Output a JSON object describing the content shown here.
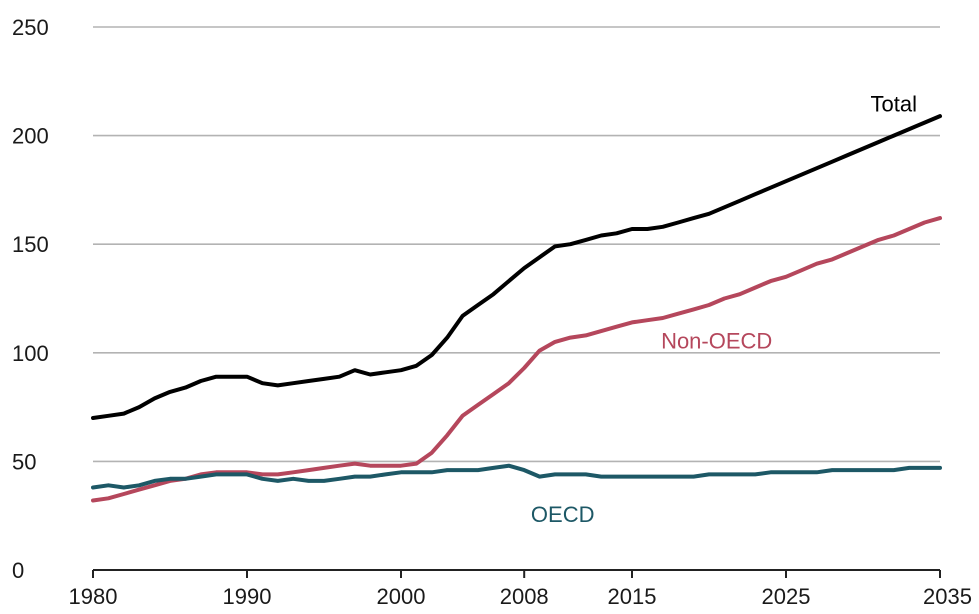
{
  "chart_data": {
    "type": "line",
    "title": "",
    "xlabel": "",
    "ylabel": "",
    "ylim": [
      0,
      250
    ],
    "xlim": [
      1980,
      2035
    ],
    "y_ticks": [
      0,
      50,
      100,
      150,
      200,
      250
    ],
    "x_ticks": [
      1980,
      1990,
      2000,
      2008,
      2015,
      2025,
      2035
    ],
    "grid": "horizontal",
    "legend": "none",
    "series": [
      {
        "name": "Total",
        "color": "#000000",
        "points": [
          [
            1980,
            70
          ],
          [
            1981,
            71
          ],
          [
            1982,
            72
          ],
          [
            1983,
            75
          ],
          [
            1984,
            79
          ],
          [
            1985,
            82
          ],
          [
            1986,
            84
          ],
          [
            1987,
            87
          ],
          [
            1988,
            89
          ],
          [
            1989,
            89
          ],
          [
            1990,
            89
          ],
          [
            1991,
            86
          ],
          [
            1992,
            85
          ],
          [
            1993,
            86
          ],
          [
            1994,
            87
          ],
          [
            1995,
            88
          ],
          [
            1996,
            89
          ],
          [
            1997,
            92
          ],
          [
            1998,
            90
          ],
          [
            1999,
            91
          ],
          [
            2000,
            92
          ],
          [
            2001,
            94
          ],
          [
            2002,
            99
          ],
          [
            2003,
            107
          ],
          [
            2004,
            117
          ],
          [
            2005,
            122
          ],
          [
            2006,
            127
          ],
          [
            2007,
            133
          ],
          [
            2008,
            139
          ],
          [
            2009,
            144
          ],
          [
            2010,
            149
          ],
          [
            2011,
            150
          ],
          [
            2012,
            152
          ],
          [
            2013,
            154
          ],
          [
            2014,
            155
          ],
          [
            2015,
            157
          ],
          [
            2016,
            157
          ],
          [
            2017,
            158
          ],
          [
            2018,
            160
          ],
          [
            2019,
            162
          ],
          [
            2020,
            164
          ],
          [
            2021,
            167
          ],
          [
            2022,
            170
          ],
          [
            2023,
            173
          ],
          [
            2024,
            176
          ],
          [
            2025,
            179
          ],
          [
            2026,
            182
          ],
          [
            2027,
            185
          ],
          [
            2028,
            188
          ],
          [
            2029,
            191
          ],
          [
            2030,
            194
          ],
          [
            2031,
            197
          ],
          [
            2032,
            200
          ],
          [
            2033,
            203
          ],
          [
            2034,
            206
          ],
          [
            2035,
            209
          ]
        ]
      },
      {
        "name": "Non-OECD",
        "color": "#b5475c",
        "points": [
          [
            1980,
            32
          ],
          [
            1981,
            33
          ],
          [
            1982,
            35
          ],
          [
            1983,
            37
          ],
          [
            1984,
            39
          ],
          [
            1985,
            41
          ],
          [
            1986,
            42
          ],
          [
            1987,
            44
          ],
          [
            1988,
            45
          ],
          [
            1989,
            45
          ],
          [
            1990,
            45
          ],
          [
            1991,
            44
          ],
          [
            1992,
            44
          ],
          [
            1993,
            45
          ],
          [
            1994,
            46
          ],
          [
            1995,
            47
          ],
          [
            1996,
            48
          ],
          [
            1997,
            49
          ],
          [
            1998,
            48
          ],
          [
            1999,
            48
          ],
          [
            2000,
            48
          ],
          [
            2001,
            49
          ],
          [
            2002,
            54
          ],
          [
            2003,
            62
          ],
          [
            2004,
            71
          ],
          [
            2005,
            76
          ],
          [
            2006,
            81
          ],
          [
            2007,
            86
          ],
          [
            2008,
            93
          ],
          [
            2009,
            101
          ],
          [
            2010,
            105
          ],
          [
            2011,
            107
          ],
          [
            2012,
            108
          ],
          [
            2013,
            110
          ],
          [
            2014,
            112
          ],
          [
            2015,
            114
          ],
          [
            2016,
            115
          ],
          [
            2017,
            116
          ],
          [
            2018,
            118
          ],
          [
            2019,
            120
          ],
          [
            2020,
            122
          ],
          [
            2021,
            125
          ],
          [
            2022,
            127
          ],
          [
            2023,
            130
          ],
          [
            2024,
            133
          ],
          [
            2025,
            135
          ],
          [
            2026,
            138
          ],
          [
            2027,
            141
          ],
          [
            2028,
            143
          ],
          [
            2029,
            146
          ],
          [
            2030,
            149
          ],
          [
            2031,
            152
          ],
          [
            2032,
            154
          ],
          [
            2033,
            157
          ],
          [
            2034,
            160
          ],
          [
            2035,
            162
          ]
        ]
      },
      {
        "name": "OECD",
        "color": "#1d5866",
        "points": [
          [
            1980,
            38
          ],
          [
            1981,
            39
          ],
          [
            1982,
            38
          ],
          [
            1983,
            39
          ],
          [
            1984,
            41
          ],
          [
            1985,
            42
          ],
          [
            1986,
            42
          ],
          [
            1987,
            43
          ],
          [
            1988,
            44
          ],
          [
            1989,
            44
          ],
          [
            1990,
            44
          ],
          [
            1991,
            42
          ],
          [
            1992,
            41
          ],
          [
            1993,
            42
          ],
          [
            1994,
            41
          ],
          [
            1995,
            41
          ],
          [
            1996,
            42
          ],
          [
            1997,
            43
          ],
          [
            1998,
            43
          ],
          [
            1999,
            44
          ],
          [
            2000,
            45
          ],
          [
            2001,
            45
          ],
          [
            2002,
            45
          ],
          [
            2003,
            46
          ],
          [
            2004,
            46
          ],
          [
            2005,
            46
          ],
          [
            2006,
            47
          ],
          [
            2007,
            48
          ],
          [
            2008,
            46
          ],
          [
            2009,
            43
          ],
          [
            2010,
            44
          ],
          [
            2011,
            44
          ],
          [
            2012,
            44
          ],
          [
            2013,
            43
          ],
          [
            2014,
            43
          ],
          [
            2015,
            43
          ],
          [
            2016,
            43
          ],
          [
            2017,
            43
          ],
          [
            2018,
            43
          ],
          [
            2019,
            43
          ],
          [
            2020,
            44
          ],
          [
            2021,
            44
          ],
          [
            2022,
            44
          ],
          [
            2023,
            44
          ],
          [
            2024,
            45
          ],
          [
            2025,
            45
          ],
          [
            2026,
            45
          ],
          [
            2027,
            45
          ],
          [
            2028,
            46
          ],
          [
            2029,
            46
          ],
          [
            2030,
            46
          ],
          [
            2031,
            46
          ],
          [
            2032,
            46
          ],
          [
            2033,
            47
          ],
          [
            2034,
            47
          ],
          [
            2035,
            47
          ]
        ]
      }
    ],
    "annotations": [
      {
        "text": "Total",
        "series": "Total",
        "x": 2032,
        "y": 211,
        "color": "#000000"
      },
      {
        "text": "Non-OECD",
        "series": "Non-OECD",
        "x": 2020.5,
        "y": 102,
        "color": "#b5475c"
      },
      {
        "text": "OECD",
        "series": "OECD",
        "x": 2010.5,
        "y": 22,
        "color": "#1d5866"
      }
    ]
  }
}
